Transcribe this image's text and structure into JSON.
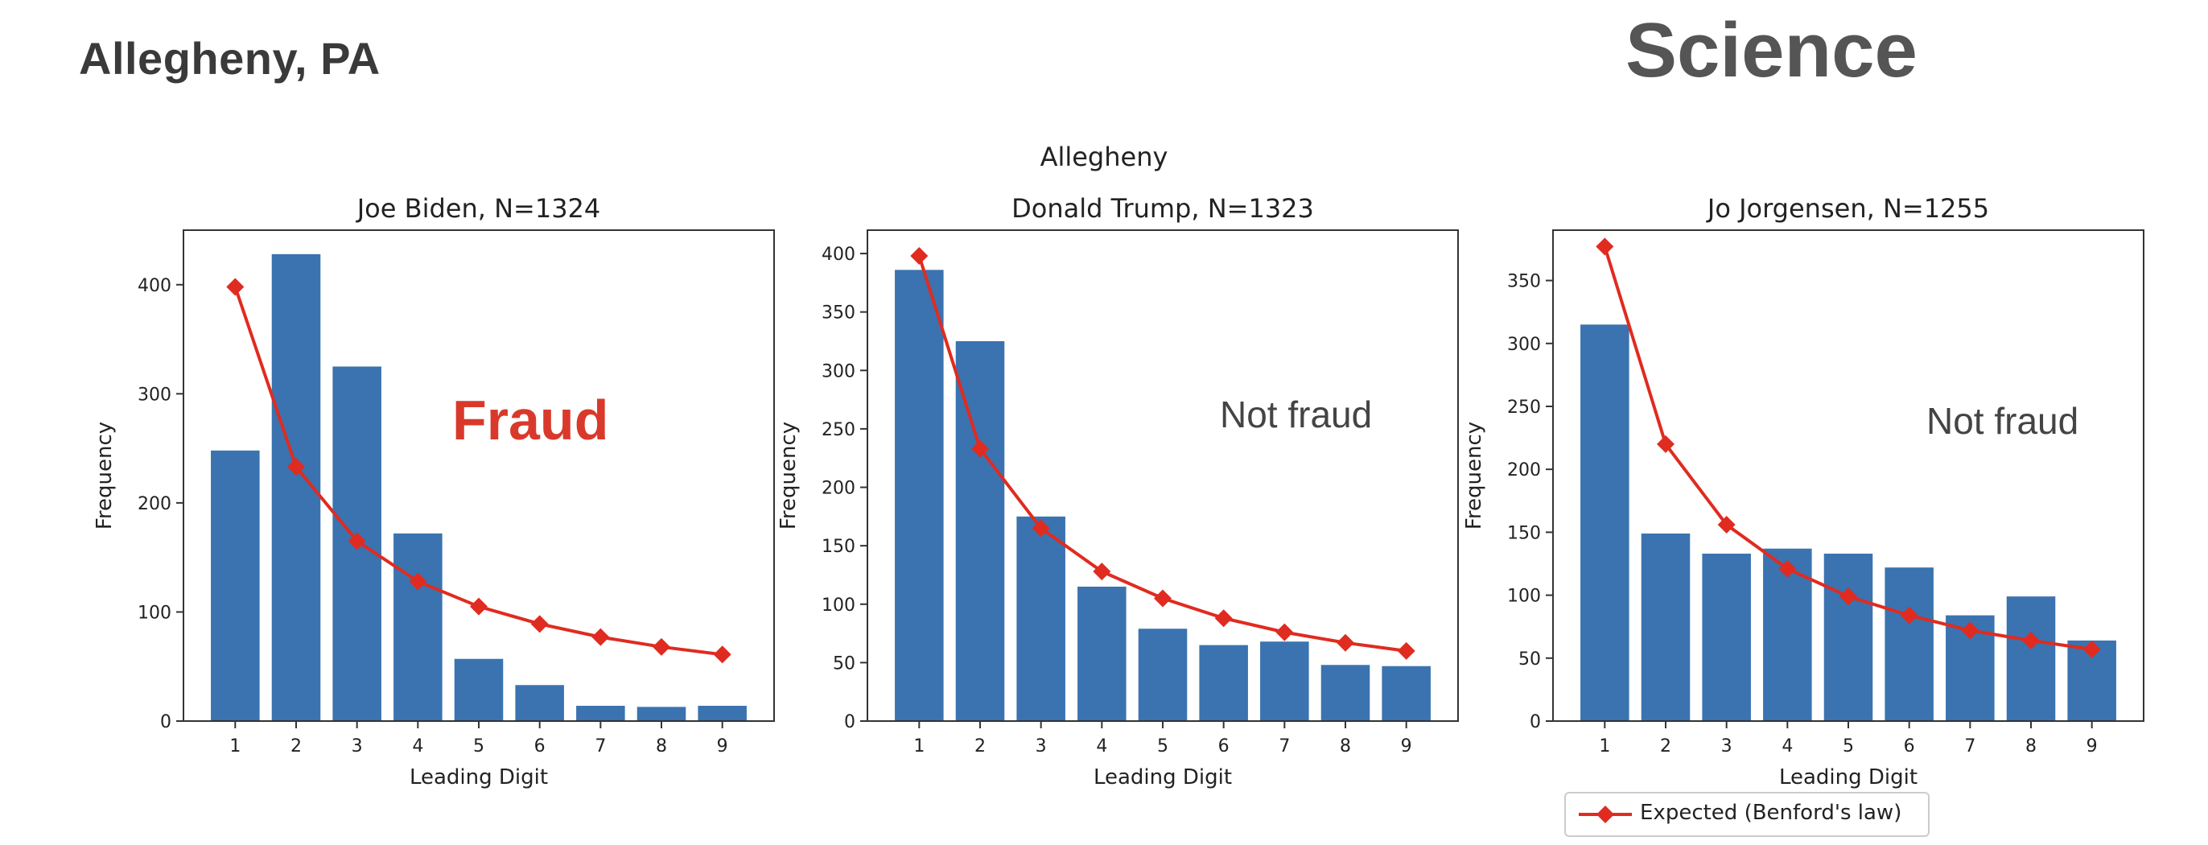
{
  "slide": {
    "title": "Allegheny, PA",
    "brand": "Science"
  },
  "figure": {
    "suptitle": "Allegheny"
  },
  "annotations": [
    "Fraud",
    "Not fraud",
    "Not fraud"
  ],
  "colors": {
    "bar": "#3a73b0",
    "expected": "#e02b20",
    "fraud": "#d9392b"
  },
  "legend": {
    "label": "Expected (Benford's law)",
    "placement": "lower-right"
  },
  "chart_data": [
    {
      "type": "bar",
      "title": "Joe Biden, N=1324",
      "xlabel": "Leading Digit",
      "ylabel": "Frequency",
      "categories": [
        "1",
        "2",
        "3",
        "4",
        "5",
        "6",
        "7",
        "8",
        "9"
      ],
      "yticks": [
        0,
        100,
        200,
        300,
        400
      ],
      "ylim": [
        0,
        450
      ],
      "series": [
        {
          "values": [
            248,
            428,
            325,
            172,
            57,
            33,
            14,
            13,
            14
          ]
        },
        {
          "name": "Expected (Benford's law)",
          "type": "line",
          "values": [
            398,
            233,
            165,
            128,
            105,
            89,
            77,
            68,
            61
          ]
        }
      ]
    },
    {
      "type": "bar",
      "title": "Donald Trump, N=1323",
      "xlabel": "Leading Digit",
      "ylabel": "Frequency",
      "categories": [
        "1",
        "2",
        "3",
        "4",
        "5",
        "6",
        "7",
        "8",
        "9"
      ],
      "yticks": [
        0,
        50,
        100,
        150,
        200,
        250,
        300,
        350,
        400
      ],
      "ylim": [
        0,
        420
      ],
      "series": [
        {
          "values": [
            386,
            325,
            175,
            115,
            79,
            65,
            68,
            48,
            47
          ]
        },
        {
          "name": "Expected (Benford's law)",
          "type": "line",
          "values": [
            398,
            233,
            165,
            128,
            105,
            88,
            76,
            67,
            60
          ]
        }
      ]
    },
    {
      "type": "bar",
      "title": "Jo Jorgensen, N=1255",
      "xlabel": "Leading Digit",
      "ylabel": "Frequency",
      "categories": [
        "1",
        "2",
        "3",
        "4",
        "5",
        "6",
        "7",
        "8",
        "9"
      ],
      "yticks": [
        0,
        50,
        100,
        150,
        200,
        250,
        300,
        350
      ],
      "ylim": [
        0,
        390
      ],
      "series": [
        {
          "values": [
            315,
            149,
            133,
            137,
            133,
            122,
            84,
            99,
            64
          ]
        },
        {
          "name": "Expected (Benford's law)",
          "type": "line",
          "values": [
            377,
            220,
            156,
            121,
            99,
            84,
            72,
            64,
            57
          ]
        }
      ]
    }
  ]
}
